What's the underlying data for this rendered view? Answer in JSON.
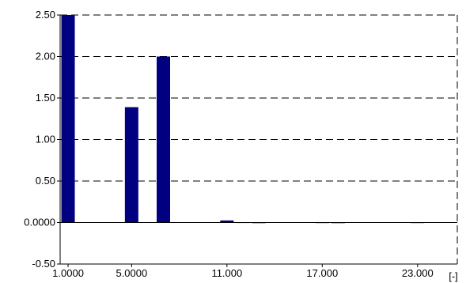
{
  "chart_data": {
    "type": "bar",
    "title": "",
    "xlabel": "",
    "ylabel": "",
    "x_unit_label": "[-]",
    "xlim": [
      0.5,
      25.5
    ],
    "ylim": [
      -0.5,
      2.5
    ],
    "grid": true,
    "colors": {
      "bar": "#000080",
      "grid": "#000000",
      "axis": "#000000"
    },
    "y_ticks": [
      {
        "value": 2.5,
        "label": "2.50"
      },
      {
        "value": 2.0,
        "label": "2.00"
      },
      {
        "value": 1.5,
        "label": "1.50"
      },
      {
        "value": 1.0,
        "label": "1.00"
      },
      {
        "value": 0.5,
        "label": "0.50"
      },
      {
        "value": 0.0,
        "label": "0.0000"
      },
      {
        "value": -0.5,
        "label": "-0.50"
      }
    ],
    "x_ticks": [
      {
        "value": 1,
        "label": "1.0000"
      },
      {
        "value": 5,
        "label": "5.0000"
      },
      {
        "value": 11,
        "label": "11.000"
      },
      {
        "value": 17,
        "label": "17.000"
      },
      {
        "value": 23,
        "label": "23.000"
      }
    ],
    "series": [
      {
        "x": [
          1,
          2,
          3,
          4,
          5,
          6,
          7,
          8,
          9,
          10,
          11,
          12,
          13,
          14,
          15,
          16,
          17,
          18,
          19,
          20,
          21,
          22,
          23,
          24,
          25
        ],
        "values": [
          2.5,
          0,
          0,
          0,
          1.39,
          0,
          2.0,
          0,
          0,
          0,
          0.025,
          0.004,
          0.002,
          0,
          0,
          0,
          0.003,
          0.002,
          0,
          0,
          0,
          0,
          0.003,
          0,
          0
        ]
      }
    ]
  }
}
